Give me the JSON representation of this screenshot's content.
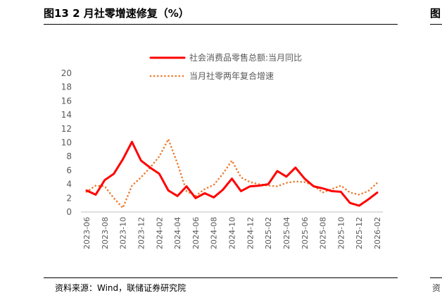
{
  "header": {
    "title": "图13 2 月社零增速修复（%）",
    "right_fragment": "图"
  },
  "footer": {
    "source": "资料来源：Wind，联储证券研究院",
    "right_fragment": "资"
  },
  "colors": {
    "series1": "#ff0000",
    "series2": "#ed7d31",
    "axis": "#bfbfbf",
    "text": "#595959"
  },
  "chart_data": {
    "type": "line",
    "title": "",
    "xlabel": "",
    "ylabel": "",
    "ylim": [
      0,
      20
    ],
    "yticks": [
      0,
      2,
      4,
      6,
      8,
      10,
      12,
      14,
      16,
      18,
      20
    ],
    "grid": false,
    "legend_position": "top-right",
    "x": [
      "2023-06",
      "2023-07",
      "2023-08",
      "2023-09",
      "2023-10",
      "2023-11",
      "2023-12",
      "2024-01",
      "2024-02",
      "2024-03",
      "2024-04",
      "2024-05",
      "2024-06",
      "2024-07",
      "2024-08",
      "2024-09",
      "2024-10",
      "2024-11",
      "2024-12",
      "2025-01",
      "2025-02",
      "2025-03",
      "2025-04",
      "2025-05",
      "2025-06",
      "2025-07",
      "2025-08",
      "2025-09",
      "2025-10",
      "2025-11",
      "2025-12",
      "2026-01",
      "2026-02"
    ],
    "x_tick_labels": [
      "2023-06",
      "2023-08",
      "2023-10",
      "2023-12",
      "2024-02",
      "2024-04",
      "2024-06",
      "2024-08",
      "2024-10",
      "2024-12",
      "2025-02",
      "2025-04",
      "2025-06",
      "2025-08",
      "2025-10",
      "2025-12",
      "2026-02"
    ],
    "series": [
      {
        "name": "社会消费品零售总额:当月同比",
        "style": "solid",
        "values": [
          3.1,
          2.5,
          4.6,
          5.5,
          7.6,
          10.1,
          7.4,
          6.4,
          5.5,
          3.1,
          2.3,
          3.7,
          2.0,
          2.7,
          2.1,
          3.2,
          4.8,
          3.0,
          3.7,
          3.8,
          4.0,
          5.9,
          5.1,
          6.4,
          4.8,
          3.7,
          3.4,
          3.0,
          2.9,
          1.3,
          0.9,
          1.8,
          2.8
        ]
      },
      {
        "name": "当月社零两年复合增速",
        "style": "dotted",
        "values": [
          2.9,
          3.8,
          3.7,
          2.0,
          0.6,
          3.8,
          5.0,
          6.4,
          8.0,
          10.5,
          7.0,
          3.0,
          2.3,
          3.3,
          3.9,
          5.5,
          7.4,
          5.0,
          4.3,
          4.0,
          3.8,
          3.7,
          4.2,
          4.4,
          4.3,
          3.8,
          2.8,
          3.3,
          3.8,
          2.8,
          2.5,
          3.0,
          4.2
        ]
      }
    ]
  }
}
